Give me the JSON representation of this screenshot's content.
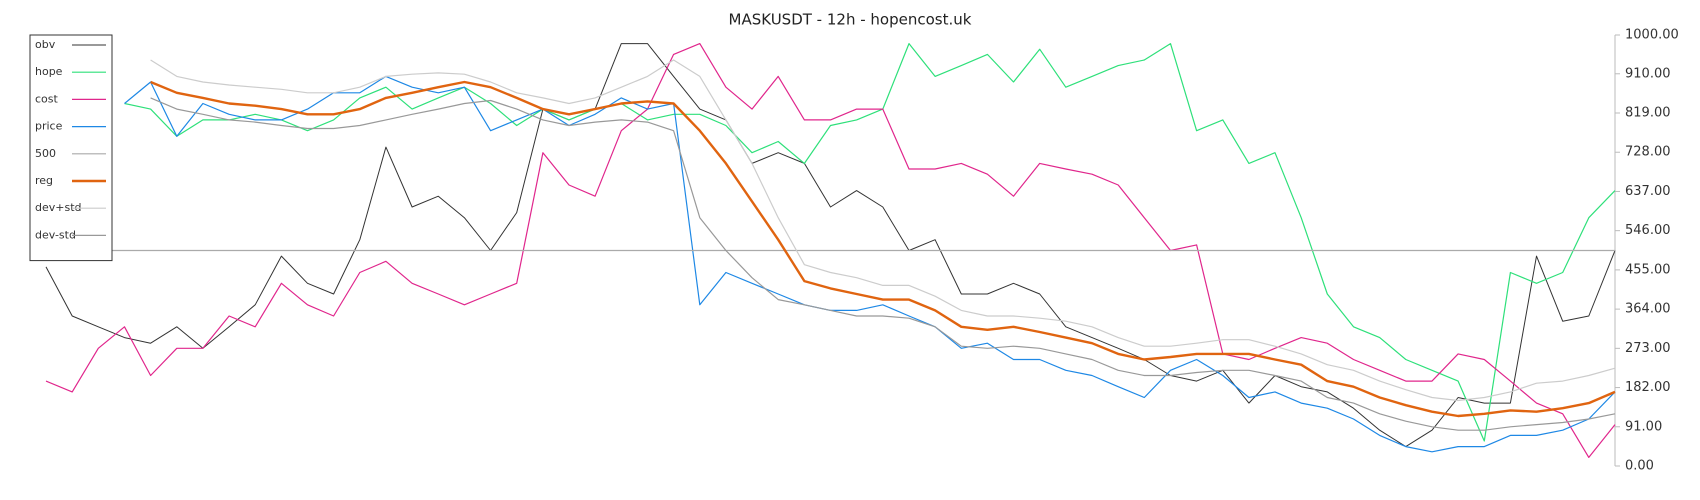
{
  "chart_data": {
    "type": "line",
    "title": "MASKUSDT - 12h - hopencost.uk",
    "ylim": [
      0,
      1000
    ],
    "yticks": [
      {
        "value": 0,
        "label": "0.00"
      },
      {
        "value": 91,
        "label": "91.00"
      },
      {
        "value": 182,
        "label": "182.00"
      },
      {
        "value": 273,
        "label": "273.00"
      },
      {
        "value": 364,
        "label": "364.00"
      },
      {
        "value": 455,
        "label": "455.00"
      },
      {
        "value": 546,
        "label": "546.00"
      },
      {
        "value": 637,
        "label": "637.00"
      },
      {
        "value": 728,
        "label": "728.00"
      },
      {
        "value": 819,
        "label": "819.00"
      },
      {
        "value": 910,
        "label": "910.00"
      },
      {
        "value": 1000,
        "label": "1000.00"
      }
    ],
    "legend": "upper left",
    "series": [
      {
        "name": "obv",
        "color": "#333333",
        "values": [
          462,
          348,
          323,
          298,
          285,
          323,
          273,
          323,
          374,
          487,
          424,
          399,
          525,
          740,
          601,
          626,
          576,
          500,
          588,
          828,
          803,
          828,
          980,
          980,
          904,
          828,
          803,
          702,
          727,
          702,
          601,
          639,
          601,
          500,
          525,
          399,
          399,
          424,
          399,
          323,
          298,
          273,
          247,
          210,
          197,
          222,
          146,
          210,
          184,
          172,
          134,
          83,
          45,
          83,
          159,
          146,
          146,
          487,
          336,
          348,
          500
        ]
      },
      {
        "name": "hope",
        "color": "#2ee07a",
        "values": [
          null,
          null,
          null,
          841,
          828,
          765,
          803,
          803,
          816,
          803,
          778,
          803,
          854,
          879,
          828,
          854,
          879,
          841,
          790,
          828,
          803,
          828,
          841,
          803,
          816,
          816,
          790,
          727,
          753,
          702,
          790,
          803,
          828,
          980,
          904,
          929,
          955,
          891,
          967,
          879,
          904,
          929,
          942,
          980,
          778,
          803,
          702,
          727,
          576,
          399,
          323,
          298,
          247,
          222,
          197,
          58,
          449,
          424,
          449,
          576,
          639
        ]
      },
      {
        "name": "cost",
        "color": "#e0268c",
        "values": [
          197,
          172,
          273,
          323,
          210,
          273,
          273,
          348,
          323,
          424,
          374,
          348,
          449,
          475,
          424,
          399,
          374,
          399,
          424,
          727,
          652,
          626,
          778,
          828,
          955,
          980,
          879,
          828,
          904,
          803,
          803,
          828,
          828,
          689,
          689,
          702,
          677,
          626,
          702,
          689,
          677,
          652,
          576,
          500,
          513,
          260,
          247,
          273,
          298,
          285,
          247,
          222,
          197,
          197,
          260,
          247,
          197,
          146,
          121,
          20,
          96
        ]
      },
      {
        "name": "price",
        "color": "#1e88e5",
        "values": [
          null,
          null,
          null,
          841,
          891,
          765,
          841,
          816,
          803,
          803,
          828,
          866,
          866,
          904,
          879,
          866,
          879,
          778,
          803,
          828,
          790,
          816,
          854,
          828,
          841,
          374,
          449,
          424,
          399,
          374,
          361,
          361,
          374,
          348,
          323,
          273,
          285,
          247,
          247,
          222,
          210,
          184,
          159,
          222,
          247,
          210,
          159,
          172,
          146,
          134,
          109,
          71,
          45,
          33,
          45,
          45,
          71,
          71,
          83,
          109,
          172
        ]
      },
      {
        "name": "500",
        "color": "#aaaaaa",
        "values": [
          500,
          500,
          500,
          500,
          500,
          500,
          500,
          500,
          500,
          500,
          500,
          500,
          500,
          500,
          500,
          500,
          500,
          500,
          500,
          500,
          500,
          500,
          500,
          500,
          500,
          500,
          500,
          500,
          500,
          500,
          500,
          500,
          500,
          500,
          500,
          500,
          500,
          500,
          500,
          500,
          500,
          500,
          500,
          500,
          500,
          500,
          500,
          500,
          500,
          500,
          500,
          500,
          500,
          500,
          500,
          500,
          500,
          500,
          500,
          500,
          500
        ]
      },
      {
        "name": "reg",
        "color": "#e06410",
        "values": [
          null,
          null,
          null,
          null,
          891,
          866,
          854,
          841,
          836,
          828,
          816,
          816,
          828,
          854,
          866,
          879,
          891,
          879,
          854,
          828,
          816,
          828,
          841,
          846,
          841,
          778,
          702,
          614,
          525,
          429,
          412,
          399,
          386,
          386,
          361,
          323,
          316,
          323,
          311,
          298,
          285,
          260,
          247,
          253,
          260,
          260,
          260,
          247,
          235,
          197,
          184,
          159,
          141,
          126,
          116,
          121,
          129,
          126,
          134,
          146,
          172
        ]
      },
      {
        "name": "dev+std",
        "color": "#cccccc",
        "values": [
          null,
          null,
          null,
          null,
          942,
          904,
          891,
          884,
          879,
          874,
          866,
          866,
          879,
          904,
          909,
          912,
          909,
          891,
          866,
          854,
          841,
          854,
          879,
          904,
          942,
          904,
          803,
          702,
          576,
          467,
          449,
          437,
          419,
          419,
          394,
          361,
          348,
          348,
          343,
          336,
          323,
          298,
          278,
          278,
          285,
          293,
          293,
          278,
          260,
          235,
          222,
          197,
          177,
          159,
          152,
          159,
          172,
          192,
          197,
          210,
          227
        ]
      },
      {
        "name": "dev-std",
        "color": "#999999",
        "values": [
          null,
          null,
          null,
          null,
          854,
          828,
          816,
          803,
          798,
          790,
          783,
          783,
          790,
          803,
          816,
          828,
          841,
          848,
          828,
          803,
          790,
          798,
          803,
          798,
          778,
          576,
          500,
          437,
          386,
          374,
          361,
          348,
          348,
          343,
          323,
          278,
          273,
          278,
          273,
          260,
          247,
          222,
          210,
          210,
          217,
          222,
          222,
          210,
          197,
          159,
          146,
          121,
          104,
          91,
          83,
          83,
          91,
          96,
          101,
          109,
          121
        ]
      }
    ]
  }
}
